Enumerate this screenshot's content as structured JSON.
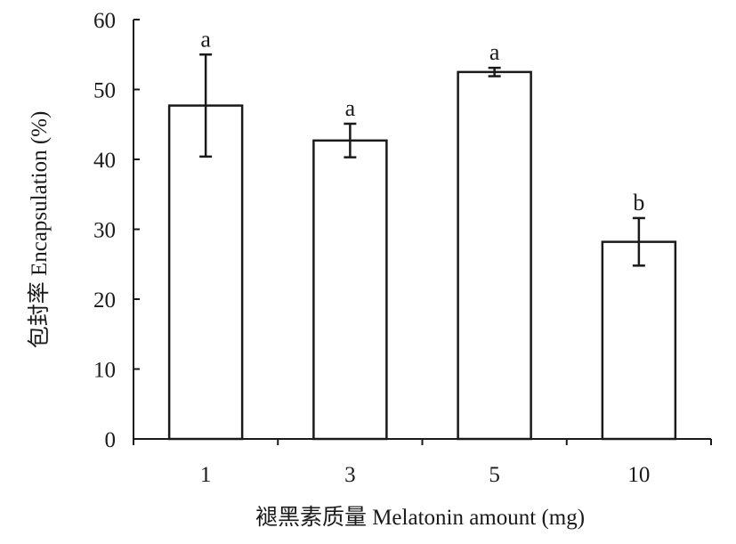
{
  "chart_data": {
    "type": "bar",
    "title": "",
    "xlabel": "褪黑素质量 Melatonin amount (mg)",
    "ylabel": "包封率 Encapsulation (%)",
    "categories": [
      "1",
      "3",
      "5",
      "10"
    ],
    "values": [
      47.7,
      42.7,
      52.5,
      28.2
    ],
    "error_upper": [
      55.0,
      45.1,
      53.1,
      31.6
    ],
    "error_lower": [
      40.4,
      40.3,
      51.9,
      24.8
    ],
    "significance": [
      "a",
      "a",
      "a",
      "b"
    ],
    "ylim": [
      0,
      60
    ],
    "yticks": [
      "0",
      "10",
      "20",
      "30",
      "40",
      "50",
      "60"
    ],
    "grid": false,
    "legend": "none",
    "bar_fill": "#ffffff",
    "bar_stroke": "#1a1a1a"
  }
}
